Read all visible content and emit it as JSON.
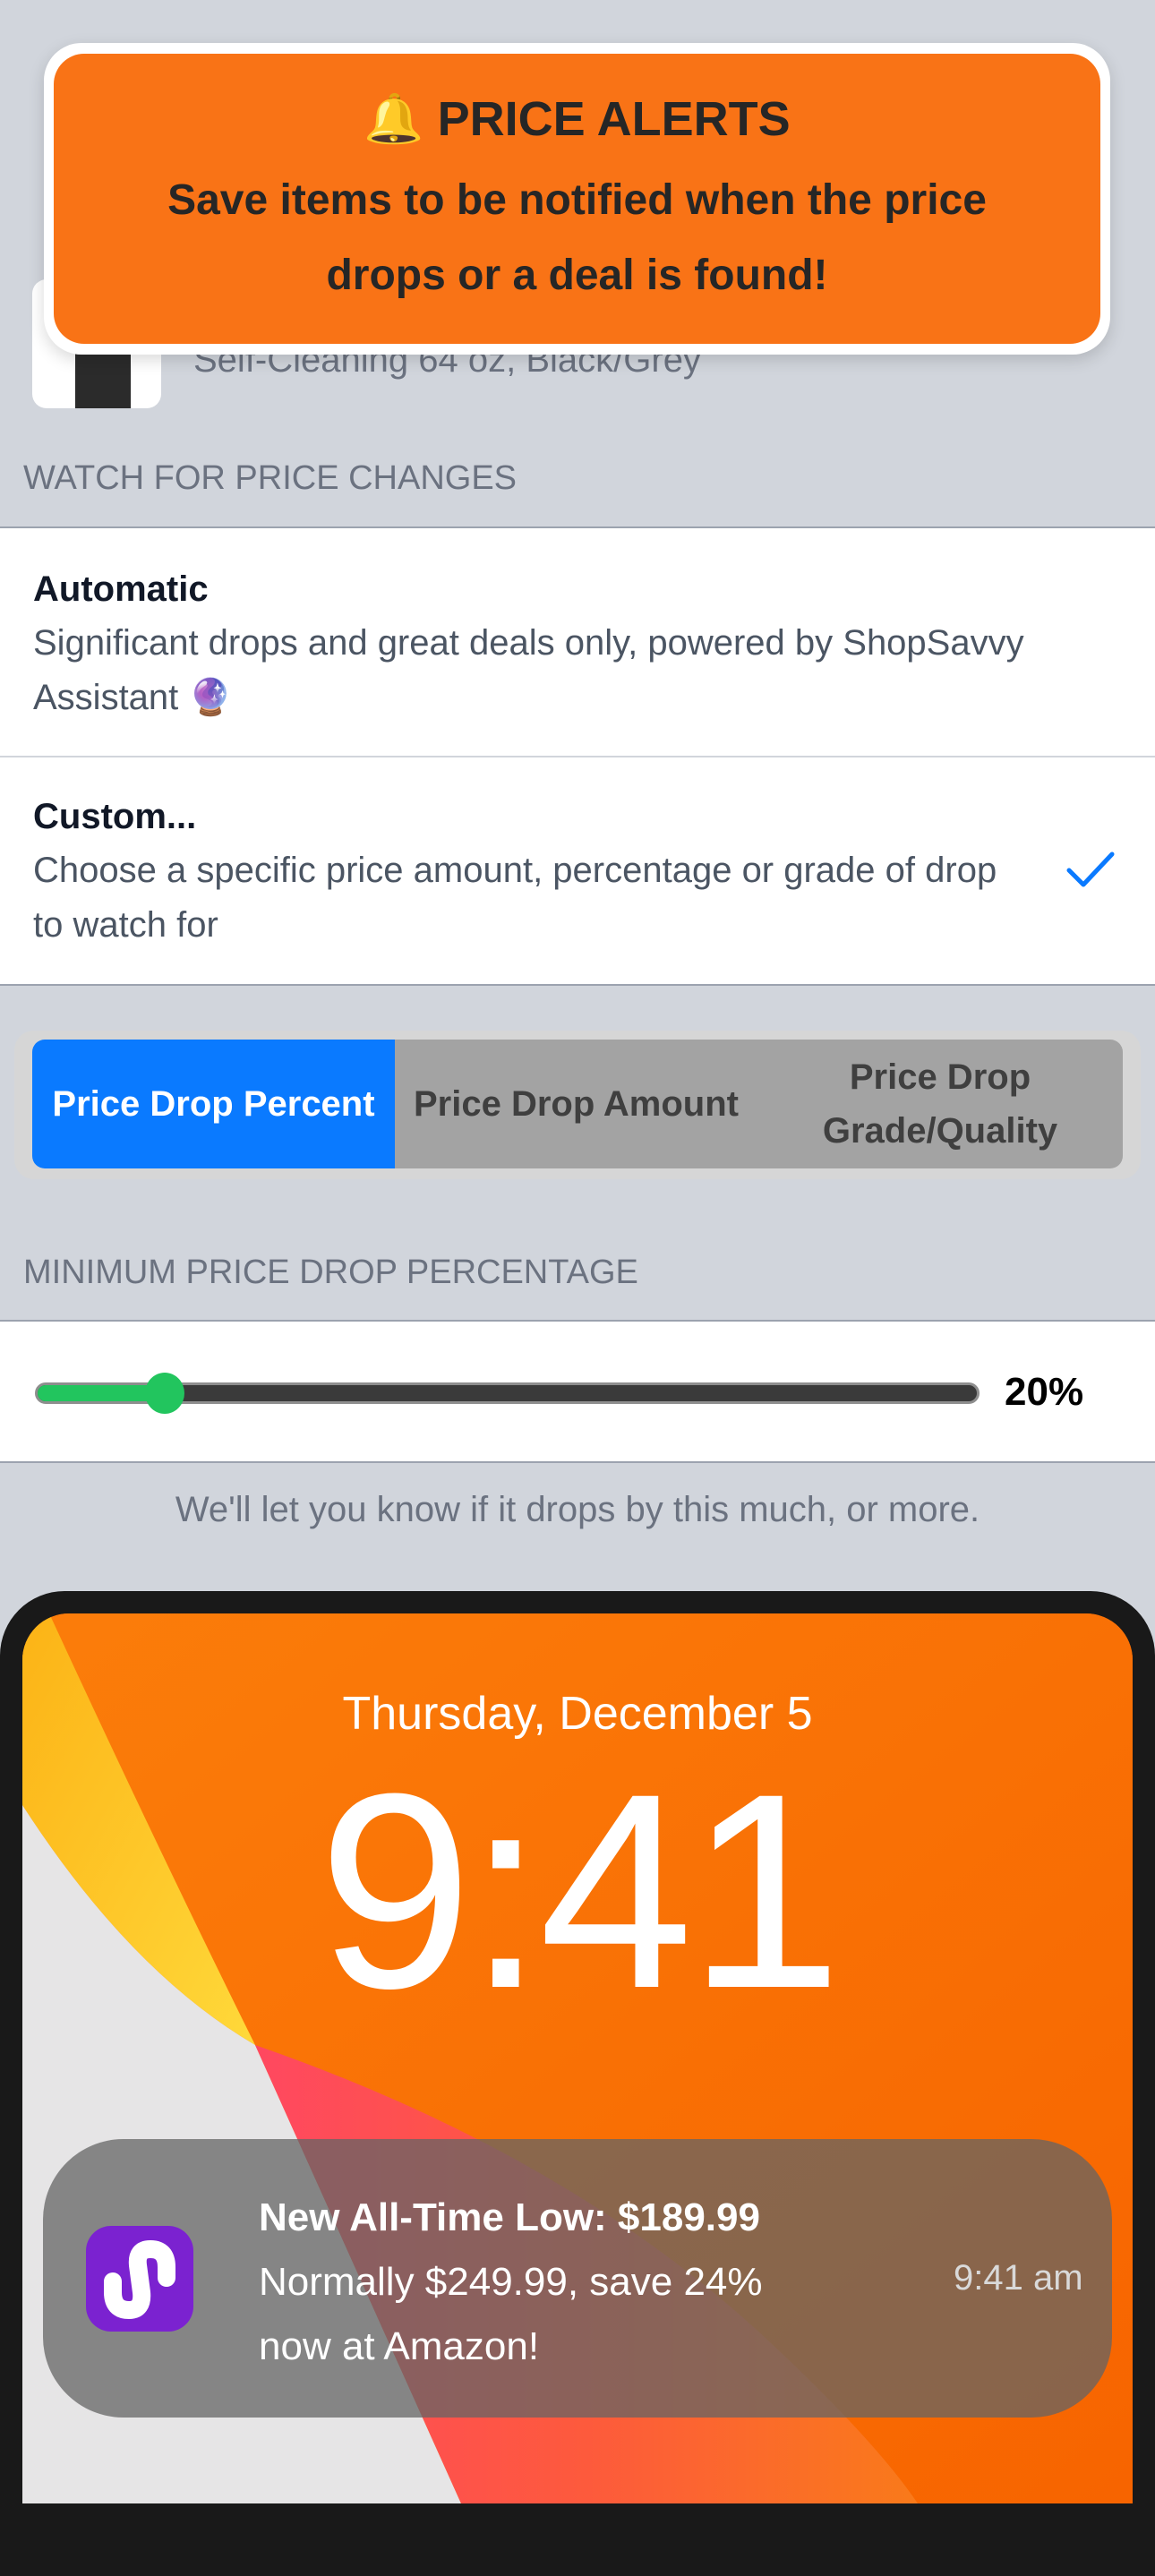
{
  "banner": {
    "icon": "bell-icon",
    "title": "PRICE ALERTS",
    "body": "Save items to be notified when the price drops or a deal is found!"
  },
  "product": {
    "subtitle": "Self-Cleaning 64 oz, Black/Grey"
  },
  "watch": {
    "header": "WATCH FOR PRICE CHANGES",
    "options": [
      {
        "title": "Automatic",
        "description": "Significant drops and great deals only, powered by ShopSavvy Assistant 🔮",
        "selected": false
      },
      {
        "title": "Custom...",
        "description": "Choose a specific price amount, percentage or grade of drop to watch for",
        "selected": true
      }
    ]
  },
  "segments": {
    "items": [
      "Price Drop Percent",
      "Price Drop Amount",
      "Price Drop Grade/Quality"
    ],
    "selected": 0
  },
  "minimum": {
    "header": "MINIMUM PRICE DROP PERCENTAGE",
    "value_percent": 20,
    "value_label": "20%",
    "caption": "We'll let you know if it drops by this much, or more."
  },
  "lockscreen": {
    "date": "Thursday, December 5",
    "time": "9:41",
    "notification": {
      "title": "New All-Time Low: $189.99",
      "body": "Normally $249.99, save 24% now at Amazon!",
      "time": "9:41 am",
      "app_icon_color": "#7b22d0"
    }
  },
  "colors": {
    "accent": "#0a7aff",
    "banner": "#f97316",
    "slider": "#22c55e"
  }
}
